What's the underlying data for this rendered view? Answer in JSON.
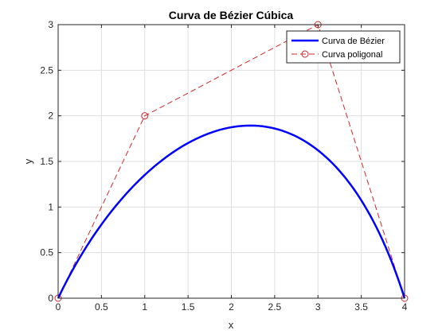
{
  "chart_data": {
    "type": "line",
    "title": "Curva de Bézier Cúbica",
    "xlabel": "x",
    "ylabel": "y",
    "xlim": [
      0,
      4
    ],
    "ylim": [
      0,
      3
    ],
    "xticks": [
      "0",
      "0.5",
      "1",
      "1.5",
      "2",
      "2.5",
      "3",
      "3.5",
      "4"
    ],
    "yticks": [
      "0",
      "0.5",
      "1",
      "1.5",
      "2",
      "2.5",
      "3"
    ],
    "grid": true,
    "legend_position": "top-right",
    "series": [
      {
        "name": "Curva de Bézier",
        "style": "solid",
        "color": "#0000ff",
        "control_points": [
          [
            0,
            0
          ],
          [
            1,
            2
          ],
          [
            3,
            3
          ],
          [
            4,
            0
          ]
        ]
      },
      {
        "name": "Curva poligonal",
        "style": "dashed",
        "marker": "circle",
        "color": "#d62728",
        "x": [
          0,
          1,
          3,
          4
        ],
        "y": [
          0,
          2,
          3,
          0
        ]
      }
    ]
  }
}
